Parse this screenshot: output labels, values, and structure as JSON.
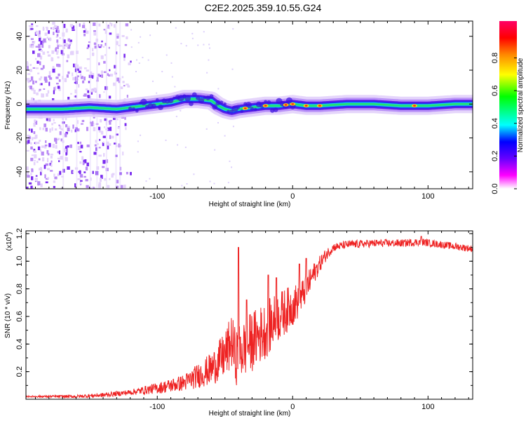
{
  "title": "C2E2.2025.359.10.55.G24",
  "chart_data": [
    {
      "type": "heatmap",
      "name": "spectrogram",
      "xlabel": "Height of straight line (km)",
      "ylabel": "Frequency (Hz)",
      "xlim": [
        -197,
        133
      ],
      "ylim": [
        -50,
        49
      ],
      "xticks": [
        -100,
        0,
        100
      ],
      "xticklabels": [
        "-100",
        "0",
        "100"
      ],
      "yticks": [
        -40,
        -20,
        0,
        20,
        40
      ],
      "yticklabels": [
        "-40",
        "-20",
        "0",
        "20",
        "40"
      ],
      "ridge": {
        "x": [
          -197,
          -170,
          -150,
          -130,
          -120,
          -110,
          -100,
          -90,
          -80,
          -70,
          -60,
          -55,
          -50,
          -45,
          -40,
          -30,
          -20,
          -10,
          0,
          10,
          20,
          40,
          60,
          80,
          100,
          120,
          133
        ],
        "freq": [
          -3,
          -3,
          -2,
          -3,
          -2,
          -1,
          0,
          1,
          3,
          3,
          2,
          -1,
          -3,
          -4,
          -3,
          -2,
          -1,
          -1,
          0,
          -1,
          -1,
          0,
          0,
          -1,
          -1,
          0,
          0
        ]
      },
      "hotspots_x": [
        -35,
        -20,
        -5,
        0,
        10,
        20,
        90
      ],
      "noise_region": [
        -197,
        -120
      ],
      "colorbar": {
        "label": "Normalized spectral amplitude",
        "range": [
          0,
          1
        ],
        "ticks": [
          0.0,
          0.2,
          0.4,
          0.6,
          0.8
        ],
        "ticklabels": [
          "0.0",
          "0.2",
          "0.4",
          "0.6",
          "0.8"
        ],
        "colors": [
          "#ffffff",
          "#ff00ff",
          "#6600ff",
          "#0000ff",
          "#00ffff",
          "#00ff00",
          "#ffff00",
          "#ff8800",
          "#ff0000",
          "#ff0066"
        ]
      }
    },
    {
      "type": "line",
      "name": "snr",
      "xlabel": "Height of straight line (km)",
      "ylabel": "SNR (10 * v/v)",
      "scale_label": "(x10",
      "scale_exponent": "4",
      "scale_close": ")",
      "xlim": [
        -197,
        133
      ],
      "ylim": [
        0,
        1.22
      ],
      "xticks": [
        -100,
        0,
        100
      ],
      "xticklabels": [
        "-100",
        "0",
        "100"
      ],
      "yticks": [
        0.2,
        0.4,
        0.6,
        0.8,
        1.0,
        1.2
      ],
      "yticklabels": [
        "0.2",
        "0.4",
        "0.6",
        "0.8",
        "1.0",
        "1.2"
      ],
      "color": "#ee2222",
      "envelope": {
        "x": [
          -197,
          -160,
          -140,
          -120,
          -100,
          -80,
          -60,
          -50,
          -45,
          -42,
          -38,
          -30,
          -20,
          -15,
          -10,
          0,
          5,
          10,
          15,
          20,
          25,
          30,
          40,
          60,
          80,
          95,
          110,
          133
        ],
        "y": [
          0.02,
          0.02,
          0.03,
          0.05,
          0.08,
          0.12,
          0.22,
          0.32,
          0.42,
          0.3,
          0.35,
          0.42,
          0.5,
          0.55,
          0.6,
          0.68,
          0.72,
          0.8,
          0.9,
          0.98,
          1.05,
          1.1,
          1.12,
          1.13,
          1.13,
          1.14,
          1.12,
          1.09
        ]
      },
      "spikes": [
        {
          "x": -40,
          "y": 1.1
        },
        {
          "x": -34,
          "y": 0.72
        },
        {
          "x": -18,
          "y": 0.9
        },
        {
          "x": -12,
          "y": 0.88
        },
        {
          "x": 5,
          "y": 0.98
        },
        {
          "x": 10,
          "y": 1.02
        },
        {
          "x": 95,
          "y": 1.18
        }
      ],
      "noise_amplitude": {
        "x": [
          -197,
          -120,
          -80,
          -60,
          -45,
          -30,
          -15,
          0,
          20,
          30,
          133
        ],
        "amp": [
          0.005,
          0.02,
          0.06,
          0.12,
          0.2,
          0.22,
          0.2,
          0.15,
          0.06,
          0.03,
          0.025
        ]
      }
    }
  ]
}
